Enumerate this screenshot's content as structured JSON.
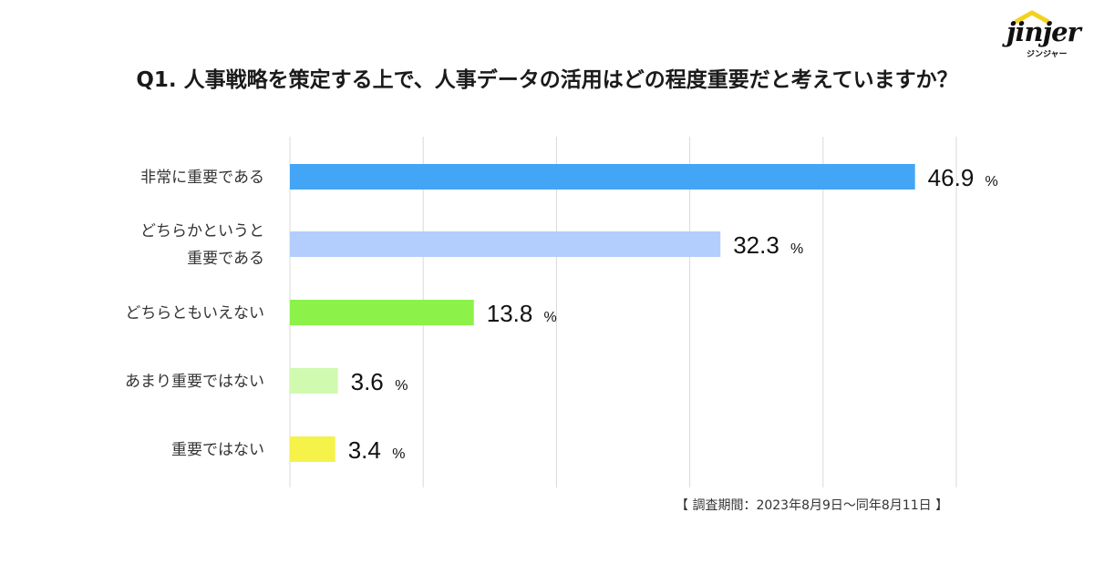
{
  "brand": {
    "name": "jinjer",
    "sub": "ジンジャー",
    "accent": "#f2d21e"
  },
  "footnote": "【 調査期間：2023年8月9日～同年8月11日 】",
  "chart_data": {
    "type": "bar",
    "orientation": "horizontal",
    "title": "Q1. 人事戦略を策定する上で、人事データの活用はどの程度重要だと考えていますか？",
    "categories": [
      [
        "非常に重要である"
      ],
      [
        "どちらかというと",
        "重要である"
      ],
      [
        "どちらともいえない"
      ],
      [
        "あまり重要ではない"
      ],
      [
        "重要ではない"
      ]
    ],
    "values": [
      46.9,
      32.3,
      13.8,
      3.6,
      3.4
    ],
    "value_labels": [
      "46.9",
      "32.3",
      "13.8",
      "3.6",
      "3.4"
    ],
    "unit": "%",
    "colors": [
      "#42a5f5",
      "#b3cdfc",
      "#8cf24a",
      "#d0fab0",
      "#f5f24a"
    ],
    "xlim": [
      0,
      50
    ],
    "grid": true,
    "xlabel": "",
    "ylabel": ""
  }
}
